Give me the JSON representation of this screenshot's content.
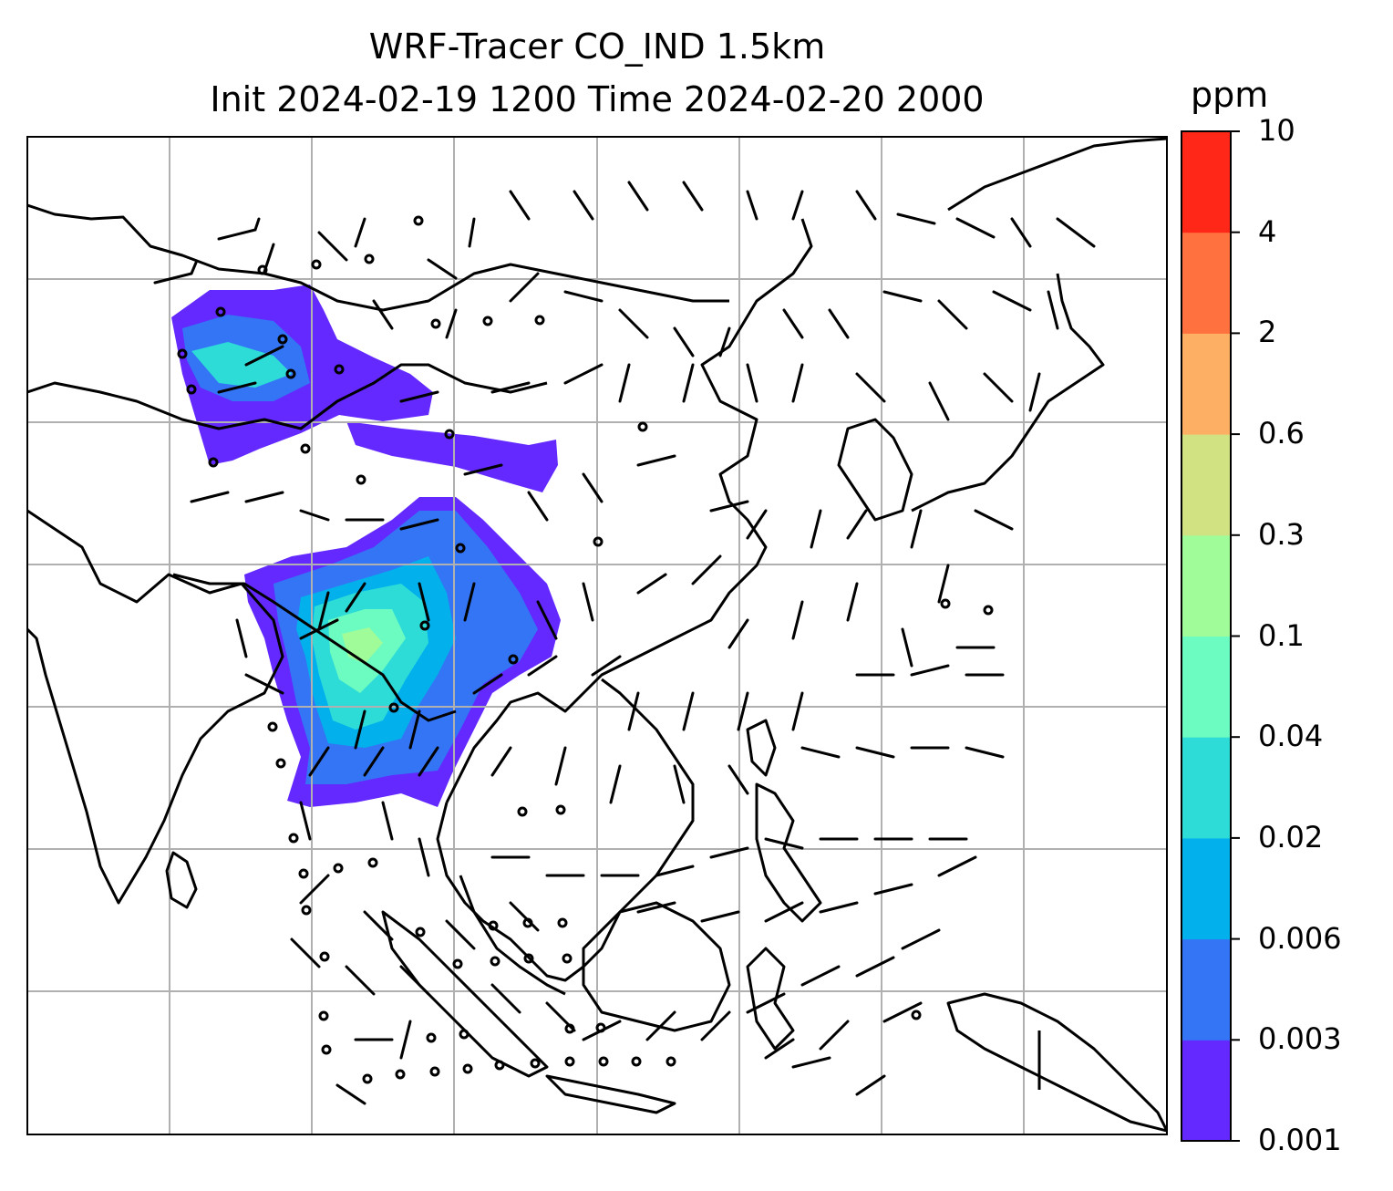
{
  "title": {
    "line1": "WRF-Tracer CO_IND 1.5km",
    "line2": "Init 2024-02-19 1200 Time 2024-02-20 2000"
  },
  "colorbar": {
    "unit": "ppm",
    "levels": [
      "0.001",
      "0.003",
      "0.006",
      "0.02",
      "0.04",
      "0.1",
      "0.3",
      "0.6",
      "2",
      "4",
      "10"
    ],
    "colors": [
      "#6329ff",
      "#3375f5",
      "#02b1ec",
      "#2ddcd7",
      "#6cfbc1",
      "#a0fb99",
      "#d1e283",
      "#fdb063",
      "#ff713e",
      "#ff2717"
    ]
  },
  "map": {
    "gridlines": true,
    "feature": "wind barbs and CO tracer concentration shading over South and East Asia",
    "line_color": "#000000",
    "grid_color": "#b0b0b0"
  }
}
